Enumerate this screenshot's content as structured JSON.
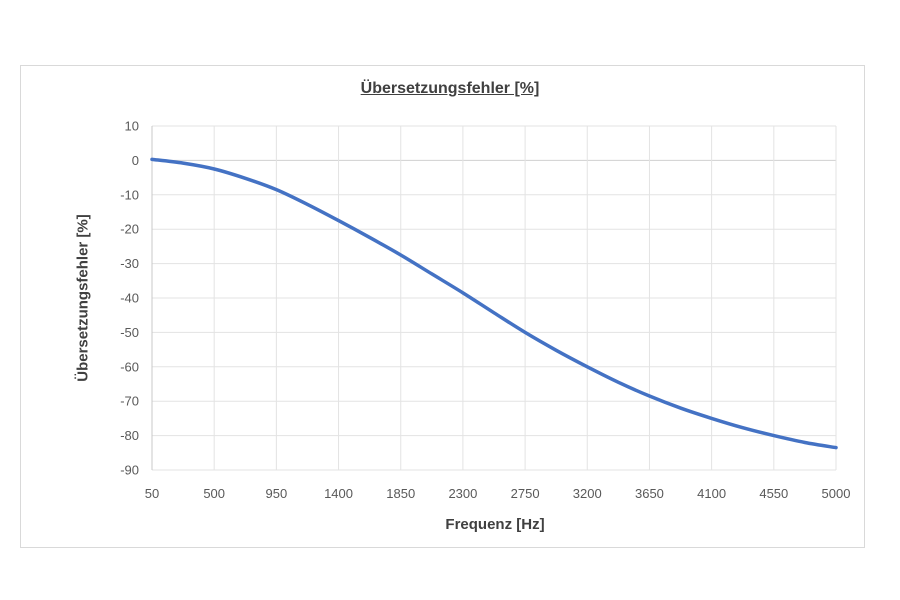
{
  "chart_data": {
    "type": "line",
    "title": "Übersetzungsfehler [%]",
    "xlabel": "Frequenz [Hz]",
    "ylabel": "Übersetzungsfehler [%]",
    "x_ticks": [
      50,
      500,
      950,
      1400,
      1850,
      2300,
      2750,
      3200,
      3650,
      4100,
      4550,
      5000
    ],
    "y_ticks": [
      10,
      0,
      -10,
      -20,
      -30,
      -40,
      -50,
      -60,
      -70,
      -80,
      -90
    ],
    "xlim": [
      50,
      5000
    ],
    "ylim": [
      -90,
      10
    ],
    "grid": true,
    "legend": "none",
    "series": [
      {
        "name": "Übersetzungsfehler",
        "color": "#4472c4",
        "x": [
          50,
          275,
          500,
          725,
          950,
          1175,
          1400,
          1625,
          1850,
          2075,
          2300,
          2525,
          2750,
          2975,
          3200,
          3425,
          3650,
          3875,
          4100,
          4325,
          4550,
          4775,
          5000
        ],
        "values": [
          0.3,
          -0.8,
          -2.5,
          -5.2,
          -8.5,
          -12.8,
          -17.5,
          -22.4,
          -27.5,
          -33.0,
          -38.5,
          -44.3,
          -50.0,
          -55.2,
          -60.0,
          -64.5,
          -68.5,
          -72.0,
          -75.0,
          -77.7,
          -80.0,
          -82.0,
          -83.5
        ]
      }
    ]
  }
}
